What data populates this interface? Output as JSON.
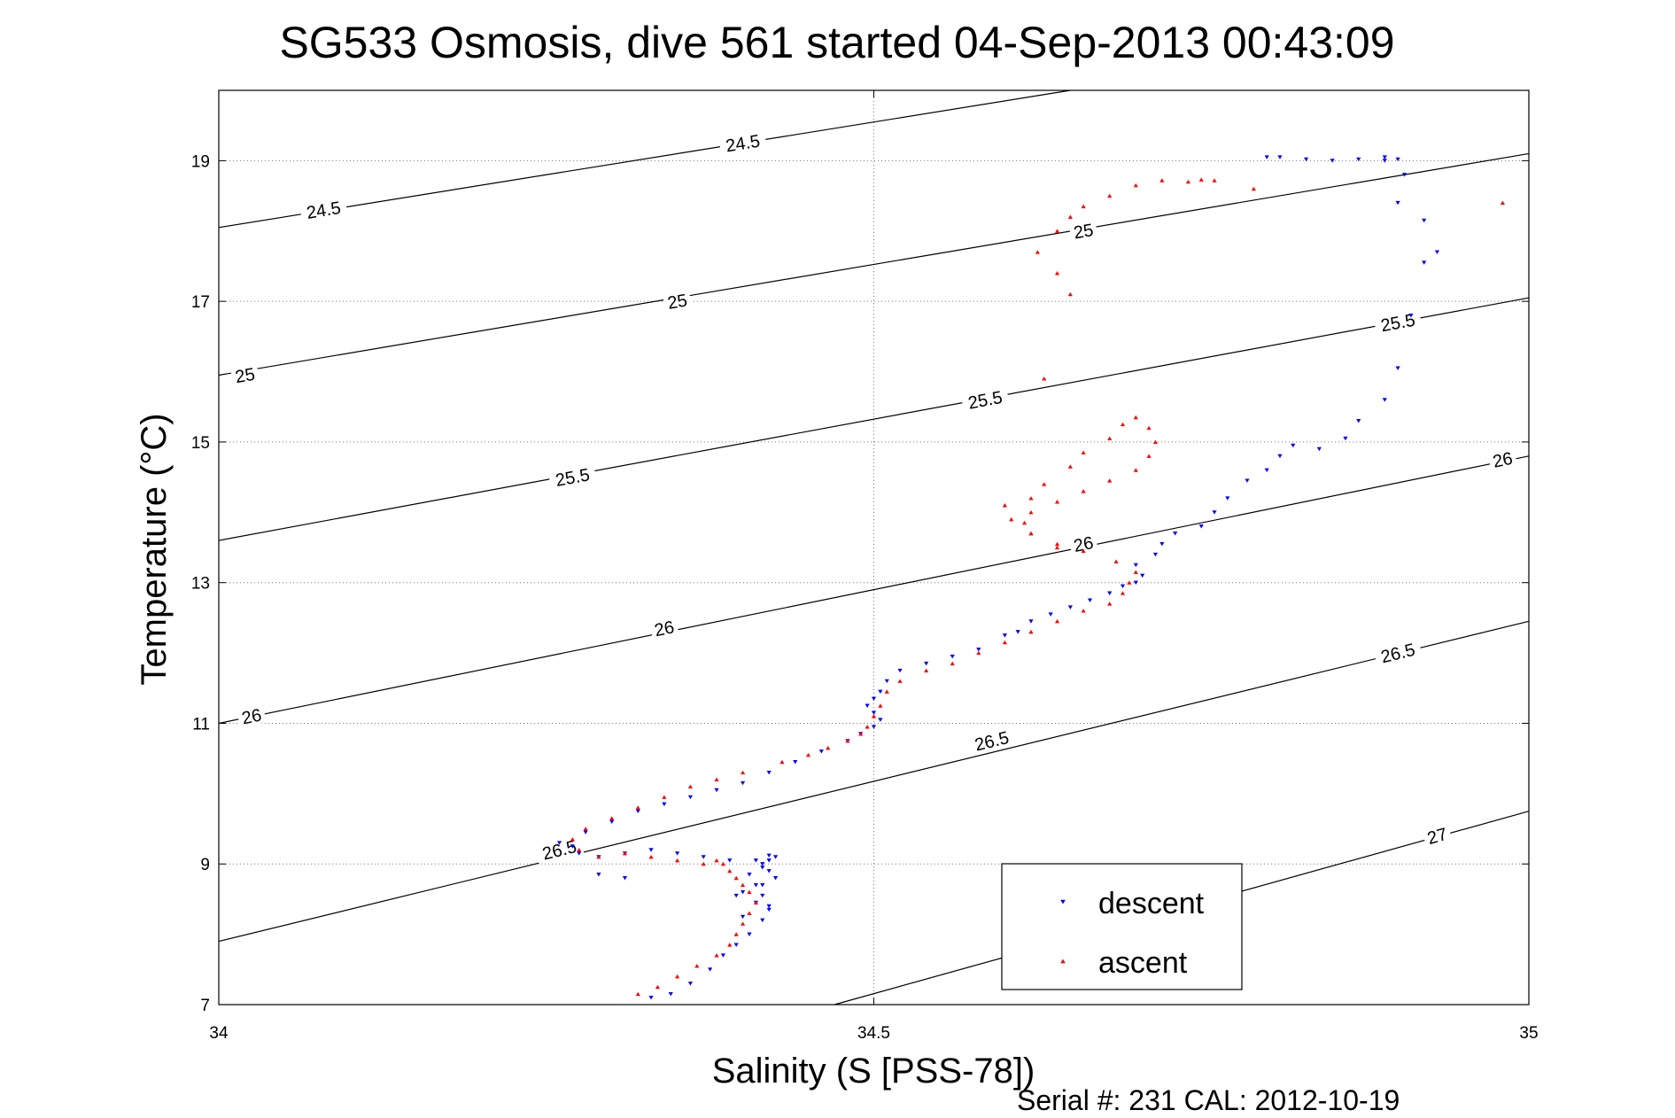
{
  "chart_data": {
    "type": "scatter",
    "title": "SG533 Osmosis, dive 561 started 04-Sep-2013 00:43:09",
    "xlabel": "Salinity (S [PSS-78])",
    "ylabel": "Temperature (°C)",
    "xlim": [
      34,
      35
    ],
    "ylim": [
      7,
      20
    ],
    "xticks": [
      34,
      34.5,
      35
    ],
    "xtick_labels": [
      "34",
      "34.5",
      "35"
    ],
    "yticks": [
      7,
      9,
      11,
      13,
      15,
      17,
      19
    ],
    "ytick_labels": [
      "7",
      "9",
      "11",
      "13",
      "15",
      "17",
      "19"
    ],
    "grid": true,
    "footer": "Serial #: 231  CAL: 2012-10-19",
    "legend": {
      "position": "lower-right",
      "entries": [
        {
          "label": "descent",
          "color": "#0000ff",
          "marker": "triangle-down"
        },
        {
          "label": "ascent",
          "color": "#ff0000",
          "marker": "triangle-up"
        }
      ]
    },
    "isopycnals": [
      {
        "value": 24.5,
        "x": [
          34,
          34.65
        ],
        "y": [
          18.05,
          20.0
        ],
        "labels": [
          {
            "text": "24.5",
            "x": 34.08,
            "y": 18.3
          },
          {
            "text": "24.5",
            "x": 34.4,
            "y": 19.25
          }
        ]
      },
      {
        "value": 25,
        "x": [
          34,
          35
        ],
        "y": [
          15.95,
          19.1
        ],
        "labels": [
          {
            "text": "25",
            "x": 34.02,
            "y": 15.95
          },
          {
            "text": "25",
            "x": 34.35,
            "y": 17.0
          },
          {
            "text": "25",
            "x": 34.66,
            "y": 18.0
          }
        ]
      },
      {
        "value": 25.5,
        "x": [
          34,
          35
        ],
        "y": [
          13.6,
          17.05
        ],
        "labels": [
          {
            "text": "25.5",
            "x": 34.27,
            "y": 14.5
          },
          {
            "text": "25.5",
            "x": 34.585,
            "y": 15.6
          },
          {
            "text": "25.5",
            "x": 34.9,
            "y": 16.7
          }
        ]
      },
      {
        "value": 26,
        "x": [
          34,
          35
        ],
        "y": [
          11.0,
          14.8
        ],
        "labels": [
          {
            "text": "26",
            "x": 34.025,
            "y": 11.1
          },
          {
            "text": "26",
            "x": 34.34,
            "y": 12.35
          },
          {
            "text": "26",
            "x": 34.66,
            "y": 13.55
          },
          {
            "text": "26",
            "x": 34.98,
            "y": 14.75
          }
        ]
      },
      {
        "value": 26.5,
        "x": [
          34,
          35
        ],
        "y": [
          7.9,
          12.45
        ],
        "labels": [
          {
            "text": "26.5",
            "x": 34.26,
            "y": 9.2
          },
          {
            "text": "26.5",
            "x": 34.59,
            "y": 10.75
          },
          {
            "text": "26.5",
            "x": 34.9,
            "y": 12.0
          }
        ]
      },
      {
        "value": 27,
        "x": [
          34.47,
          35
        ],
        "y": [
          7.0,
          9.75
        ],
        "labels": [
          {
            "text": "27",
            "x": 34.93,
            "y": 9.4
          }
        ]
      }
    ],
    "series": [
      {
        "name": "descent",
        "color": "#0000ff",
        "x": [
          34.33,
          34.345,
          34.36,
          34.375,
          34.385,
          34.395,
          34.405,
          34.415,
          34.42,
          34.415,
          34.41,
          34.405,
          34.415,
          34.42,
          34.425,
          34.42,
          34.41,
          34.415,
          34.42,
          34.425,
          34.415,
          34.4,
          34.395,
          34.41,
          34.42,
          34.4,
          34.39,
          34.37,
          34.35,
          34.33,
          34.31,
          34.29,
          34.275,
          34.29,
          34.31,
          34.27,
          34.26,
          34.28,
          34.3,
          34.32,
          34.34,
          34.36,
          34.38,
          34.4,
          34.42,
          34.44,
          34.46,
          34.48,
          34.49,
          34.5,
          34.505,
          34.5,
          34.495,
          34.5,
          34.505,
          34.51,
          34.52,
          34.54,
          34.56,
          34.58,
          34.6,
          34.61,
          34.62,
          34.635,
          34.65,
          34.665,
          34.68,
          34.69,
          34.7,
          34.705,
          34.7,
          34.715,
          34.72,
          34.73,
          34.75,
          34.76,
          34.77,
          34.785,
          34.8,
          34.81,
          34.82,
          34.84,
          34.86,
          34.87,
          34.89,
          34.9,
          34.91,
          34.92,
          34.93,
          34.92,
          34.9,
          34.905,
          34.89,
          34.8,
          34.81,
          34.83,
          34.85,
          34.87,
          34.89,
          34.9
        ],
        "y": [
          7.1,
          7.15,
          7.3,
          7.5,
          7.7,
          7.85,
          8.0,
          8.2,
          8.4,
          8.55,
          8.7,
          8.85,
          8.95,
          9.05,
          9.1,
          9.12,
          9.05,
          9.0,
          8.9,
          8.8,
          8.7,
          8.6,
          8.55,
          8.45,
          8.35,
          8.25,
          9.05,
          9.1,
          9.15,
          9.2,
          9.15,
          9.1,
          9.15,
          8.85,
          8.8,
          9.25,
          9.3,
          9.45,
          9.6,
          9.75,
          9.85,
          9.95,
          10.05,
          10.15,
          10.3,
          10.45,
          10.6,
          10.75,
          10.85,
          10.95,
          11.05,
          11.15,
          11.25,
          11.35,
          11.45,
          11.6,
          11.75,
          11.85,
          11.95,
          12.05,
          12.25,
          12.3,
          12.45,
          12.55,
          12.65,
          12.75,
          12.85,
          12.95,
          13.0,
          13.1,
          13.25,
          13.4,
          13.55,
          13.7,
          13.8,
          14.0,
          14.2,
          14.45,
          14.6,
          14.8,
          14.95,
          14.9,
          15.05,
          15.3,
          15.6,
          16.05,
          16.8,
          17.55,
          17.7,
          18.15,
          18.4,
          18.8,
          19.0,
          19.05,
          19.05,
          19.02,
          19.0,
          19.02,
          19.05,
          19.02
        ]
      },
      {
        "name": "ascent",
        "color": "#ff0000",
        "x": [
          34.32,
          34.335,
          34.35,
          34.365,
          34.38,
          34.39,
          34.395,
          34.4,
          34.405,
          34.41,
          34.405,
          34.4,
          34.395,
          34.39,
          34.385,
          34.38,
          34.37,
          34.35,
          34.33,
          34.31,
          34.29,
          34.275,
          34.27,
          34.28,
          34.3,
          34.32,
          34.34,
          34.36,
          34.38,
          34.4,
          34.43,
          34.45,
          34.465,
          34.48,
          34.49,
          34.495,
          34.5,
          34.505,
          34.51,
          34.52,
          34.54,
          34.56,
          34.58,
          34.6,
          34.62,
          34.64,
          34.66,
          34.68,
          34.69,
          34.695,
          34.7,
          34.685,
          34.66,
          34.64,
          34.62,
          34.615,
          34.62,
          34.64,
          34.66,
          34.68,
          34.7,
          34.71,
          34.715,
          34.71,
          34.7,
          34.69,
          34.68,
          34.66,
          34.65,
          34.63,
          34.62,
          34.6,
          34.605,
          34.62,
          34.64,
          34.63,
          34.65,
          34.64,
          34.625,
          34.64,
          34.65,
          34.66,
          34.68,
          34.7,
          34.72,
          34.74,
          34.75,
          34.76,
          34.79,
          34.98
        ],
        "y": [
          7.15,
          7.25,
          7.4,
          7.55,
          7.7,
          7.85,
          8.0,
          8.15,
          8.3,
          8.45,
          8.6,
          8.7,
          8.8,
          8.9,
          9.0,
          9.05,
          9.0,
          9.05,
          9.1,
          9.15,
          9.1,
          9.2,
          9.35,
          9.5,
          9.65,
          9.8,
          9.95,
          10.1,
          10.2,
          10.3,
          10.45,
          10.55,
          10.65,
          10.75,
          10.85,
          10.95,
          11.1,
          11.25,
          11.45,
          11.6,
          11.75,
          11.85,
          12.0,
          12.15,
          12.3,
          12.45,
          12.6,
          12.7,
          12.85,
          13.0,
          13.15,
          13.3,
          13.45,
          13.55,
          13.7,
          13.85,
          14.0,
          14.15,
          14.3,
          14.45,
          14.6,
          14.8,
          15.0,
          15.2,
          15.35,
          15.25,
          15.05,
          14.85,
          14.65,
          14.4,
          14.2,
          14.1,
          13.9,
          13.7,
          13.5,
          15.9,
          17.1,
          17.4,
          17.7,
          18.0,
          18.2,
          18.35,
          18.5,
          18.65,
          18.72,
          18.7,
          18.73,
          18.72,
          18.6,
          18.4
        ]
      }
    ]
  }
}
